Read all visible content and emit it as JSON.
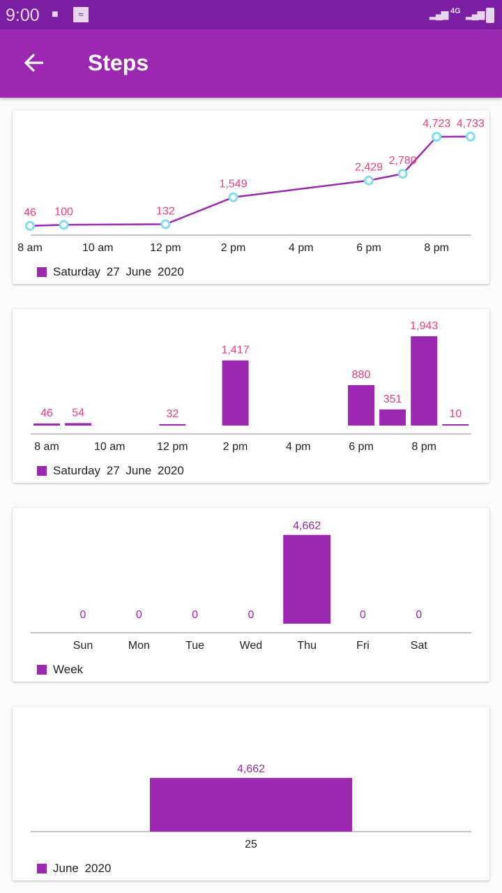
{
  "status_bar": {
    "time": "9:00",
    "icons": [
      "shopping-bag-icon",
      "wifi-icon",
      "signal-icon",
      "4g-icon",
      "signal-icon",
      "battery-charging-icon"
    ],
    "network": "4G"
  },
  "app_bar": {
    "title": "Steps",
    "back_icon": "arrow-left-icon"
  },
  "colors": {
    "primary": "#9c27b0",
    "status": "#7b1fa2",
    "value_label": "#ec407a",
    "point": "#80deea"
  },
  "chart_data": [
    {
      "type": "line",
      "x": [
        8,
        9,
        12,
        14,
        18,
        19,
        20,
        21
      ],
      "values": [
        46,
        100,
        132,
        1549,
        2429,
        2780,
        4723,
        4733
      ],
      "value_labels": [
        "46",
        "100",
        "132",
        "1,549",
        "2,429",
        "2,780",
        "4,723",
        "4,733"
      ],
      "tick_values": [
        8,
        10,
        12,
        14,
        16,
        18,
        20
      ],
      "tick_labels": [
        "8 am",
        "10 am",
        "12 pm",
        "2 pm",
        "4 pm",
        "6 pm",
        "8 pm"
      ],
      "legend": "Saturday 27 June 2020"
    },
    {
      "type": "bar",
      "x": [
        8,
        9,
        12,
        14,
        18,
        19,
        20,
        21
      ],
      "values": [
        46,
        54,
        32,
        1417,
        880,
        351,
        1943,
        10
      ],
      "value_labels": [
        "46",
        "54",
        "32",
        "1,417",
        "880",
        "351",
        "1,943",
        "10"
      ],
      "tick_values": [
        8,
        10,
        12,
        14,
        16,
        18,
        20
      ],
      "tick_labels": [
        "8 am",
        "10 am",
        "12 pm",
        "2 pm",
        "4 pm",
        "6 pm",
        "8 pm"
      ],
      "legend": "Saturday 27 June 2020"
    },
    {
      "type": "bar",
      "categories": [
        "Sun",
        "Mon",
        "Tue",
        "Wed",
        "Thu",
        "Fri",
        "Sat"
      ],
      "values": [
        0,
        0,
        0,
        0,
        4662,
        0,
        0
      ],
      "value_labels": [
        "0",
        "0",
        "0",
        "0",
        "4,662",
        "0",
        "0"
      ],
      "legend": "Week"
    },
    {
      "type": "bar",
      "categories": [
        "25"
      ],
      "values": [
        4662
      ],
      "value_labels": [
        "4,662"
      ],
      "legend": "June 2020"
    }
  ]
}
